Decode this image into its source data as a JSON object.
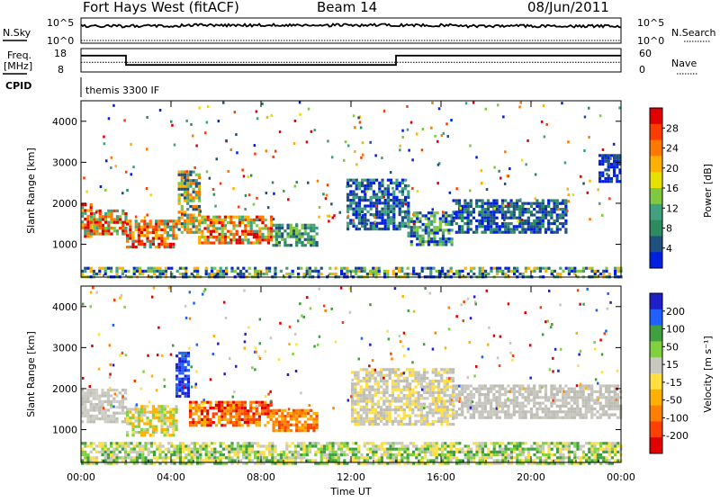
{
  "header": {
    "title": "Fort Hays West (fitACF)",
    "beam": "Beam 14",
    "date": "08/Jun/2011"
  },
  "top_panels": {
    "nsky_label": "N.Sky",
    "nsky_ticks": [
      "10^5",
      "10^0"
    ],
    "nsearch_label": "N.Search",
    "nsearch_ticks": [
      "10^5",
      "10^0"
    ],
    "freq_label_line1": "Freq.",
    "freq_label_line2": "[MHz]",
    "freq_ticks": [
      "18",
      "8"
    ],
    "nave_label": "Nave",
    "nave_ticks": [
      "60",
      "0"
    ],
    "cpid_label": "CPID",
    "cpid_value": "themis 3300 IF"
  },
  "chart_data": [
    {
      "type": "heatmap",
      "name": "power",
      "ylabel": "Slant Range [km]",
      "yticks": [
        1000,
        2000,
        3000,
        4000
      ],
      "ylim": [
        200,
        4500
      ],
      "xlim_hours": [
        0,
        24
      ],
      "colorbar": {
        "label": "Power [dB]",
        "ticks": [
          "28",
          "24",
          "20",
          "16",
          "12",
          "8",
          "4"
        ],
        "colors": [
          "#e00000",
          "#ff3c00",
          "#ff7800",
          "#ffb000",
          "#e8e000",
          "#80c840",
          "#40a080",
          "#2c8c60",
          "#205080",
          "#0020e0"
        ]
      },
      "regions": [
        {
          "t0": 0.0,
          "t1": 0.4,
          "r0": 1200,
          "r1": 2000,
          "colors": [
            "#ff7800",
            "#e00000",
            "#ffb000",
            "#40a080"
          ]
        },
        {
          "t0": 0.4,
          "t1": 2.0,
          "r0": 1250,
          "r1": 1850,
          "colors": [
            "#e00000",
            "#ff3c00",
            "#ff7800",
            "#40a080",
            "#80c840"
          ]
        },
        {
          "t0": 2.0,
          "t1": 4.3,
          "r0": 900,
          "r1": 1600,
          "colors": [
            "#e00000",
            "#ff3c00",
            "#ff7800",
            "#ffb000",
            "#40a080"
          ]
        },
        {
          "t0": 4.3,
          "t1": 5.2,
          "r0": 1300,
          "r1": 2800,
          "colors": [
            "#ff7800",
            "#80c840",
            "#40a080",
            "#205080",
            "#ffb000"
          ]
        },
        {
          "t0": 5.2,
          "t1": 8.5,
          "r0": 1050,
          "r1": 1700,
          "colors": [
            "#e00000",
            "#ff3c00",
            "#ff7800",
            "#ffb000",
            "#40a080",
            "#80c840"
          ]
        },
        {
          "t0": 8.5,
          "t1": 10.5,
          "r0": 1000,
          "r1": 1500,
          "colors": [
            "#40a080",
            "#80c840",
            "#205080",
            "#2c8c60"
          ]
        },
        {
          "t0": 11.8,
          "t1": 14.5,
          "r0": 1400,
          "r1": 2600,
          "colors": [
            "#205080",
            "#0020e0",
            "#40a080"
          ]
        },
        {
          "t0": 14.5,
          "t1": 16.5,
          "r0": 1000,
          "r1": 1800,
          "colors": [
            "#205080",
            "#40a080",
            "#0020e0",
            "#80c840"
          ]
        },
        {
          "t0": 16.5,
          "t1": 21.5,
          "r0": 1300,
          "r1": 2100,
          "colors": [
            "#205080",
            "#0020e0",
            "#2c8c60"
          ]
        },
        {
          "t0": 23.0,
          "t1": 24.0,
          "r0": 2500,
          "r1": 3200,
          "colors": [
            "#205080",
            "#0020e0"
          ]
        },
        {
          "t0": 0.0,
          "t1": 24.0,
          "r0": 200,
          "r1": 450,
          "colors": [
            "#205080",
            "#0020e0",
            "#40a080",
            "#80c840",
            "#ffb000"
          ]
        }
      ]
    },
    {
      "type": "heatmap",
      "name": "velocity",
      "ylabel": "Slant Range [km]",
      "xlabel": "Time UT",
      "yticks": [
        1000,
        2000,
        3000,
        4000
      ],
      "xticks": [
        "00:00",
        "04:00",
        "08:00",
        "12:00",
        "16:00",
        "20:00",
        "00:00"
      ],
      "ylim": [
        200,
        4500
      ],
      "xlim_hours": [
        0,
        24
      ],
      "colorbar": {
        "label": "Velocity [m s⁻¹]",
        "ticks": [
          "200",
          "100",
          "50",
          "15",
          "-15",
          "-50",
          "-100",
          "-200"
        ],
        "colors": [
          "#2020c8",
          "#2060ff",
          "#40a040",
          "#80d040",
          "#c8c8c0",
          "#ffe040",
          "#ffb000",
          "#ff8000",
          "#ff4000",
          "#e00000"
        ]
      },
      "regions": [
        {
          "t0": 0.0,
          "t1": 2.0,
          "r0": 1200,
          "r1": 2000,
          "colors": [
            "#c8c8c0",
            "#bdbdb5",
            "#d0d0c8"
          ]
        },
        {
          "t0": 2.0,
          "t1": 4.2,
          "r0": 850,
          "r1": 1600,
          "colors": [
            "#ffb000",
            "#c8c8c0",
            "#ffe040",
            "#80d040"
          ]
        },
        {
          "t0": 4.2,
          "t1": 4.8,
          "r0": 1800,
          "r1": 2900,
          "colors": [
            "#2020c8",
            "#2060ff"
          ]
        },
        {
          "t0": 4.8,
          "t1": 8.5,
          "r0": 1100,
          "r1": 1700,
          "colors": [
            "#ff4000",
            "#ff8000",
            "#e00000",
            "#ffb000"
          ]
        },
        {
          "t0": 8.5,
          "t1": 10.5,
          "r0": 1000,
          "r1": 1500,
          "colors": [
            "#ff8000",
            "#ffb000",
            "#ff4000"
          ]
        },
        {
          "t0": 12.0,
          "t1": 16.5,
          "r0": 1100,
          "r1": 2500,
          "colors": [
            "#c8c8c0",
            "#bdbdb5",
            "#ffe040"
          ]
        },
        {
          "t0": 16.5,
          "t1": 24.0,
          "r0": 1300,
          "r1": 2100,
          "colors": [
            "#c8c8c0",
            "#bdbdb5"
          ]
        },
        {
          "t0": 0.0,
          "t1": 24.0,
          "r0": 200,
          "r1": 700,
          "colors": [
            "#80d040",
            "#ffe040",
            "#40a040",
            "#c8c8c0"
          ]
        }
      ]
    }
  ],
  "series_top": {
    "freq_mhz_steps": [
      [
        0,
        15
      ],
      [
        2.0,
        15
      ],
      [
        2.0,
        11
      ],
      [
        14.0,
        11
      ],
      [
        14.0,
        15
      ],
      [
        24,
        15
      ]
    ],
    "nave_level": 25
  }
}
